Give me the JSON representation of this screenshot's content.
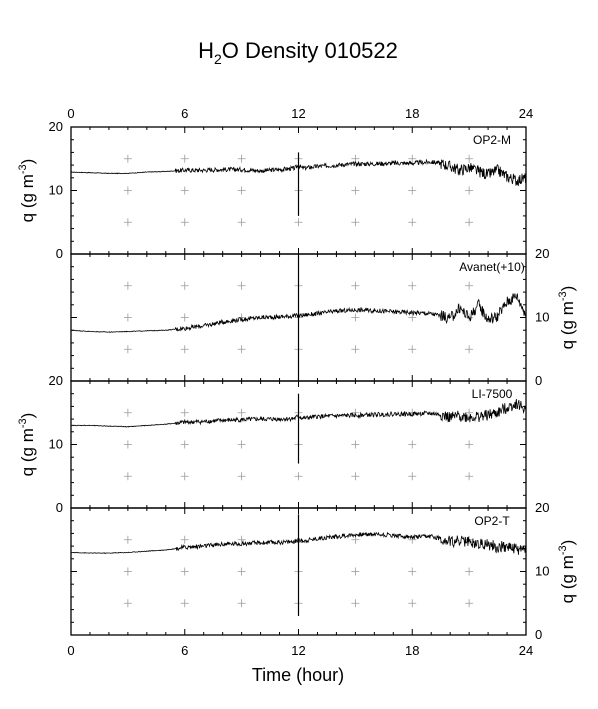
{
  "chart_data": {
    "type": "line",
    "title": {
      "pre": "H",
      "sub": "2",
      "post": "O Density 010522"
    },
    "xlabel": "Time (hour)",
    "xlim": [
      0,
      24
    ],
    "xticks": [
      0,
      6,
      12,
      18,
      24
    ],
    "ylabel": {
      "pre": "q (g m",
      "sup": "-3",
      "post": ")"
    },
    "grid": "plus-markers",
    "panels": [
      {
        "name": "OP2-M",
        "ylim": [
          0,
          20
        ],
        "yticks": [
          0,
          10,
          20
        ],
        "ylabel_side": "left",
        "x": [
          0,
          1,
          2,
          3,
          4,
          5,
          6,
          7,
          8,
          9,
          10,
          11,
          11.8,
          12,
          12.2,
          13,
          14,
          15,
          16,
          17,
          18,
          19,
          19.5,
          20,
          20.5,
          21,
          21.5,
          22,
          22.5,
          23,
          23.5,
          24
        ],
        "values": [
          12.9,
          12.8,
          12.7,
          12.7,
          12.9,
          13.0,
          13.2,
          13.2,
          13.3,
          13.3,
          13.1,
          13.3,
          13.5,
          14.0,
          13.5,
          13.8,
          14.0,
          14.2,
          14.2,
          14.3,
          14.3,
          14.5,
          14.3,
          13.8,
          13.2,
          13.6,
          13.0,
          12.5,
          13.2,
          12.2,
          11.6,
          12.0
        ],
        "spike": {
          "x": 12,
          "min": 6,
          "max": 16
        }
      },
      {
        "name": "Avanet(+10)",
        "ylim": [
          0,
          20
        ],
        "yticks": [
          0,
          10,
          20
        ],
        "ylabel_side": "right",
        "x": [
          0,
          1,
          2,
          3,
          4,
          5,
          6,
          7,
          8,
          9,
          10,
          11,
          12,
          13,
          14,
          15,
          16,
          17,
          18,
          19,
          19.5,
          20,
          20.5,
          21,
          21.5,
          22,
          22.5,
          23,
          23.5,
          24
        ],
        "values": [
          8.0,
          7.8,
          7.7,
          7.8,
          7.9,
          8.0,
          8.3,
          8.7,
          9.3,
          9.7,
          10.0,
          10.1,
          10.3,
          10.6,
          11.0,
          11.2,
          11.1,
          10.9,
          10.8,
          10.6,
          10.3,
          9.8,
          11.5,
          10.0,
          12.0,
          9.7,
          10.2,
          12.5,
          13.5,
          10.5
        ],
        "spike": {
          "x": 12,
          "min": 0,
          "max": 20
        }
      },
      {
        "name": "LI-7500",
        "ylim": [
          0,
          20
        ],
        "yticks": [
          0,
          10,
          20
        ],
        "ylabel_side": "left",
        "x": [
          0,
          1,
          2,
          3,
          4,
          5,
          6,
          7,
          8,
          9,
          10,
          11,
          11.8,
          12,
          12.2,
          13,
          14,
          15,
          16,
          17,
          18,
          19,
          19.5,
          20,
          20.5,
          21,
          21.5,
          22,
          22.5,
          23,
          23.5,
          24
        ],
        "values": [
          13.0,
          13.0,
          12.9,
          12.8,
          13.0,
          13.2,
          13.5,
          13.6,
          13.8,
          13.9,
          14.0,
          14.0,
          14.1,
          14.5,
          14.1,
          14.4,
          14.5,
          14.6,
          14.7,
          14.8,
          14.8,
          14.9,
          14.7,
          14.2,
          14.5,
          14.3,
          14.4,
          14.6,
          15.0,
          15.8,
          16.5,
          15.5
        ],
        "spike": {
          "x": 12,
          "min": 7,
          "max": 18
        }
      },
      {
        "name": "OP2-T",
        "ylim": [
          0,
          20
        ],
        "yticks": [
          0,
          10,
          20
        ],
        "ylabel_side": "right",
        "x": [
          0,
          1,
          2,
          3,
          4,
          5,
          6,
          7,
          8,
          9,
          10,
          11,
          11.8,
          12,
          12.2,
          13,
          14,
          15,
          16,
          17,
          18,
          19,
          19.5,
          20,
          20.5,
          21,
          21.5,
          22,
          22.5,
          23,
          23.5,
          24
        ],
        "values": [
          13.0,
          12.9,
          12.9,
          13.0,
          13.2,
          13.4,
          13.8,
          14.0,
          14.3,
          14.4,
          14.5,
          14.6,
          14.7,
          15.0,
          14.8,
          15.2,
          15.5,
          15.8,
          15.9,
          15.7,
          15.4,
          15.5,
          15.2,
          14.7,
          14.9,
          14.6,
          14.4,
          14.3,
          13.8,
          14.0,
          13.5,
          13.5
        ],
        "spike": {
          "x": 12,
          "min": 3,
          "max": 19
        }
      }
    ]
  }
}
